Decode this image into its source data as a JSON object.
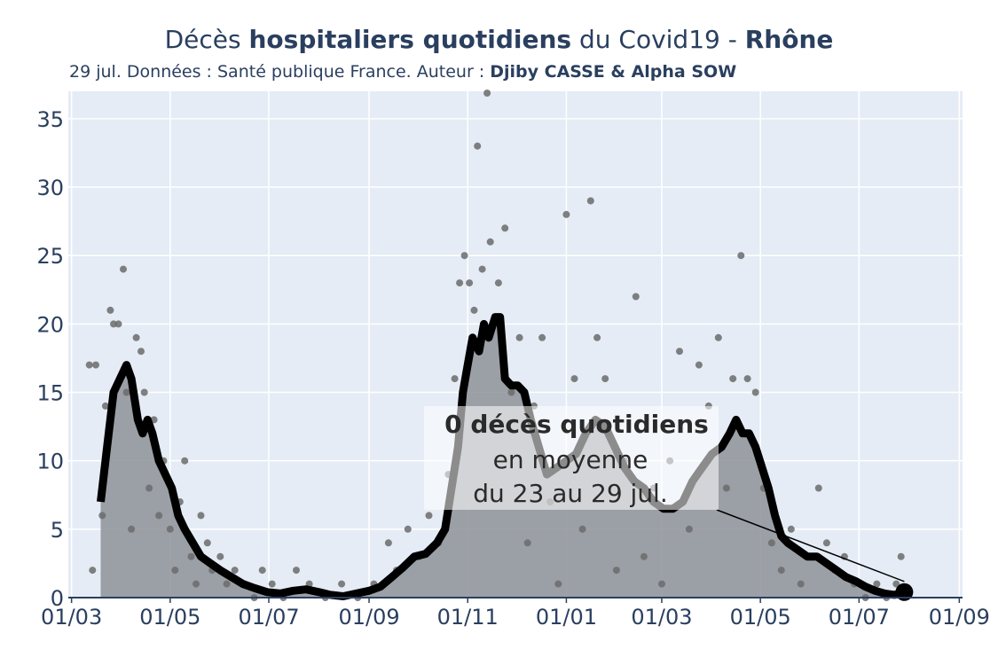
{
  "title": {
    "pre": "Décès ",
    "bold1": "hospitaliers quotidiens",
    "mid": " du Covid19 - ",
    "bold2": "Rhône"
  },
  "subtitle": {
    "text": "29 jul. Données : Santé publique France. Auteur : ",
    "authors": "Djiby CASSE & Alpha SOW"
  },
  "annotation": {
    "line1": "0 décès quotidiens",
    "line2": "en moyenne",
    "line3": "du 23 au 29 jul."
  },
  "colors": {
    "plot_bg": "#e5ecf6",
    "grid": "#ffffff",
    "area": "#8e9298",
    "line": "#000000",
    "dots": "#6b6b6b",
    "text": "#2a3f5f"
  },
  "chart_data": {
    "type": "line",
    "x_tick_labels": [
      "01/03",
      "01/05",
      "01/07",
      "01/09",
      "01/11",
      "01/01",
      "01/03",
      "01/05",
      "01/07",
      "01/09"
    ],
    "x_tick_dates": [
      "2020-03-01",
      "2020-05-01",
      "2020-07-01",
      "2020-09-01",
      "2020-11-01",
      "2021-01-01",
      "2021-03-01",
      "2021-05-01",
      "2021-07-01",
      "2021-09-01"
    ],
    "xlim": [
      "2020-02-28",
      "2021-09-03"
    ],
    "y_ticks": [
      0,
      5,
      10,
      15,
      20,
      25,
      30,
      35
    ],
    "ylim": [
      0,
      37
    ],
    "grid": true,
    "series": [
      {
        "style": "filled line (7-day average)",
        "points": [
          [
            "2020-03-19",
            7
          ],
          [
            "2020-03-23",
            11
          ],
          [
            "2020-03-27",
            15
          ],
          [
            "2020-03-31",
            16
          ],
          [
            "2020-04-04",
            17
          ],
          [
            "2020-04-07",
            16
          ],
          [
            "2020-04-11",
            13
          ],
          [
            "2020-04-14",
            12
          ],
          [
            "2020-04-17",
            13
          ],
          [
            "2020-04-20",
            12
          ],
          [
            "2020-04-24",
            10
          ],
          [
            "2020-04-28",
            9
          ],
          [
            "2020-05-02",
            8
          ],
          [
            "2020-05-06",
            6
          ],
          [
            "2020-05-10",
            5
          ],
          [
            "2020-05-15",
            4
          ],
          [
            "2020-05-20",
            3
          ],
          [
            "2020-05-26",
            2.5
          ],
          [
            "2020-06-01",
            2
          ],
          [
            "2020-06-08",
            1.5
          ],
          [
            "2020-06-15",
            1
          ],
          [
            "2020-06-22",
            0.7
          ],
          [
            "2020-06-30",
            0.4
          ],
          [
            "2020-07-08",
            0.3
          ],
          [
            "2020-07-16",
            0.5
          ],
          [
            "2020-07-24",
            0.6
          ],
          [
            "2020-08-01",
            0.4
          ],
          [
            "2020-08-08",
            0.2
          ],
          [
            "2020-08-16",
            0.1
          ],
          [
            "2020-08-24",
            0.3
          ],
          [
            "2020-09-01",
            0.5
          ],
          [
            "2020-09-08",
            0.8
          ],
          [
            "2020-09-15",
            1.5
          ],
          [
            "2020-09-22",
            2.2
          ],
          [
            "2020-09-29",
            3
          ],
          [
            "2020-10-06",
            3.2
          ],
          [
            "2020-10-13",
            4
          ],
          [
            "2020-10-18",
            5
          ],
          [
            "2020-10-22",
            8
          ],
          [
            "2020-10-26",
            11
          ],
          [
            "2020-10-29",
            15
          ],
          [
            "2020-11-01",
            17
          ],
          [
            "2020-11-04",
            19
          ],
          [
            "2020-11-08",
            18
          ],
          [
            "2020-11-11",
            20
          ],
          [
            "2020-11-14",
            19
          ],
          [
            "2020-11-18",
            20.5
          ],
          [
            "2020-11-21",
            20.5
          ],
          [
            "2020-11-24",
            16
          ],
          [
            "2020-11-28",
            15.5
          ],
          [
            "2020-12-02",
            15.5
          ],
          [
            "2020-12-06",
            15
          ],
          [
            "2020-12-10",
            13
          ],
          [
            "2020-12-15",
            11
          ],
          [
            "2020-12-20",
            9
          ],
          [
            "2020-12-26",
            9.5
          ],
          [
            "2021-01-01",
            10
          ],
          [
            "2021-01-07",
            10.5
          ],
          [
            "2021-01-13",
            12
          ],
          [
            "2021-01-19",
            13
          ],
          [
            "2021-01-25",
            12.5
          ],
          [
            "2021-01-31",
            11
          ],
          [
            "2021-02-06",
            9.5
          ],
          [
            "2021-02-12",
            8.5
          ],
          [
            "2021-02-18",
            8
          ],
          [
            "2021-02-24",
            7
          ],
          [
            "2021-03-02",
            6.5
          ],
          [
            "2021-03-08",
            6.5
          ],
          [
            "2021-03-14",
            7
          ],
          [
            "2021-03-20",
            8.5
          ],
          [
            "2021-03-26",
            9.5
          ],
          [
            "2021-04-01",
            10.5
          ],
          [
            "2021-04-07",
            11
          ],
          [
            "2021-04-12",
            12
          ],
          [
            "2021-04-16",
            13
          ],
          [
            "2021-04-20",
            12
          ],
          [
            "2021-04-24",
            12
          ],
          [
            "2021-04-28",
            11
          ],
          [
            "2021-05-02",
            9.5
          ],
          [
            "2021-05-06",
            8
          ],
          [
            "2021-05-10",
            6
          ],
          [
            "2021-05-14",
            4.5
          ],
          [
            "2021-05-18",
            4
          ],
          [
            "2021-05-24",
            3.5
          ],
          [
            "2021-05-30",
            3
          ],
          [
            "2021-06-05",
            3
          ],
          [
            "2021-06-11",
            2.5
          ],
          [
            "2021-06-17",
            2
          ],
          [
            "2021-06-23",
            1.5
          ],
          [
            "2021-06-29",
            1.2
          ],
          [
            "2021-07-05",
            0.8
          ],
          [
            "2021-07-11",
            0.5
          ],
          [
            "2021-07-17",
            0.3
          ],
          [
            "2021-07-23",
            0.2
          ],
          [
            "2021-07-29",
            0.4
          ]
        ]
      },
      {
        "style": "daily values (dots)",
        "points": [
          [
            "2020-03-12",
            17
          ],
          [
            "2020-03-16",
            17
          ],
          [
            "2020-03-14",
            2
          ],
          [
            "2020-03-20",
            6
          ],
          [
            "2020-03-22",
            14
          ],
          [
            "2020-03-25",
            21
          ],
          [
            "2020-03-27",
            20
          ],
          [
            "2020-03-30",
            20
          ],
          [
            "2020-04-02",
            24
          ],
          [
            "2020-04-04",
            15
          ],
          [
            "2020-04-07",
            5
          ],
          [
            "2020-04-10",
            19
          ],
          [
            "2020-04-13",
            18
          ],
          [
            "2020-04-15",
            15
          ],
          [
            "2020-04-18",
            8
          ],
          [
            "2020-04-21",
            13
          ],
          [
            "2020-04-24",
            6
          ],
          [
            "2020-04-27",
            10
          ],
          [
            "2020-05-01",
            5
          ],
          [
            "2020-05-04",
            2
          ],
          [
            "2020-05-07",
            7
          ],
          [
            "2020-05-10",
            10
          ],
          [
            "2020-05-14",
            3
          ],
          [
            "2020-05-17",
            1
          ],
          [
            "2020-05-20",
            6
          ],
          [
            "2020-05-24",
            4
          ],
          [
            "2020-05-27",
            2
          ],
          [
            "2020-06-01",
            3
          ],
          [
            "2020-06-05",
            1
          ],
          [
            "2020-06-10",
            2
          ],
          [
            "2020-06-16",
            1
          ],
          [
            "2020-06-22",
            0
          ],
          [
            "2020-06-27",
            2
          ],
          [
            "2020-07-03",
            1
          ],
          [
            "2020-07-10",
            0
          ],
          [
            "2020-07-18",
            2
          ],
          [
            "2020-07-26",
            1
          ],
          [
            "2020-08-05",
            0
          ],
          [
            "2020-08-15",
            1
          ],
          [
            "2020-08-25",
            0
          ],
          [
            "2020-09-04",
            1
          ],
          [
            "2020-09-13",
            4
          ],
          [
            "2020-09-18",
            2
          ],
          [
            "2020-09-25",
            5
          ],
          [
            "2020-10-02",
            3
          ],
          [
            "2020-10-08",
            6
          ],
          [
            "2020-10-14",
            4
          ],
          [
            "2020-10-20",
            9
          ],
          [
            "2020-10-24",
            16
          ],
          [
            "2020-10-27",
            23
          ],
          [
            "2020-10-30",
            25
          ],
          [
            "2020-11-02",
            23
          ],
          [
            "2020-11-05",
            21
          ],
          [
            "2020-11-07",
            33
          ],
          [
            "2020-11-10",
            24
          ],
          [
            "2020-11-13",
            37
          ],
          [
            "2020-11-15",
            26
          ],
          [
            "2020-11-20",
            23
          ],
          [
            "2020-11-24",
            27
          ],
          [
            "2020-11-28",
            15
          ],
          [
            "2020-12-03",
            19
          ],
          [
            "2020-12-08",
            4
          ],
          [
            "2020-12-12",
            14
          ],
          [
            "2020-12-17",
            19
          ],
          [
            "2020-12-22",
            7
          ],
          [
            "2020-12-27",
            1
          ],
          [
            "2021-01-01",
            28
          ],
          [
            "2021-01-06",
            16
          ],
          [
            "2021-01-11",
            5
          ],
          [
            "2021-01-16",
            29
          ],
          [
            "2021-01-20",
            19
          ],
          [
            "2021-01-25",
            16
          ],
          [
            "2021-02-01",
            2
          ],
          [
            "2021-02-06",
            10
          ],
          [
            "2021-02-13",
            22
          ],
          [
            "2021-02-18",
            3
          ],
          [
            "2021-02-24",
            8
          ],
          [
            "2021-03-01",
            1
          ],
          [
            "2021-03-06",
            10
          ],
          [
            "2021-03-12",
            18
          ],
          [
            "2021-03-18",
            5
          ],
          [
            "2021-03-24",
            17
          ],
          [
            "2021-03-30",
            14
          ],
          [
            "2021-04-05",
            19
          ],
          [
            "2021-04-10",
            8
          ],
          [
            "2021-04-14",
            16
          ],
          [
            "2021-04-19",
            25
          ],
          [
            "2021-04-23",
            16
          ],
          [
            "2021-04-28",
            15
          ],
          [
            "2021-05-03",
            8
          ],
          [
            "2021-05-08",
            4
          ],
          [
            "2021-05-14",
            2
          ],
          [
            "2021-05-20",
            5
          ],
          [
            "2021-05-26",
            1
          ],
          [
            "2021-06-01",
            3
          ],
          [
            "2021-06-06",
            8
          ],
          [
            "2021-06-11",
            4
          ],
          [
            "2021-06-16",
            2
          ],
          [
            "2021-06-22",
            3
          ],
          [
            "2021-06-28",
            1
          ],
          [
            "2021-07-05",
            0
          ],
          [
            "2021-07-12",
            1
          ],
          [
            "2021-07-18",
            0
          ],
          [
            "2021-07-24",
            1
          ],
          [
            "2021-07-27",
            3
          ]
        ]
      }
    ],
    "last_point": [
      "2021-07-29",
      0.4
    ]
  }
}
